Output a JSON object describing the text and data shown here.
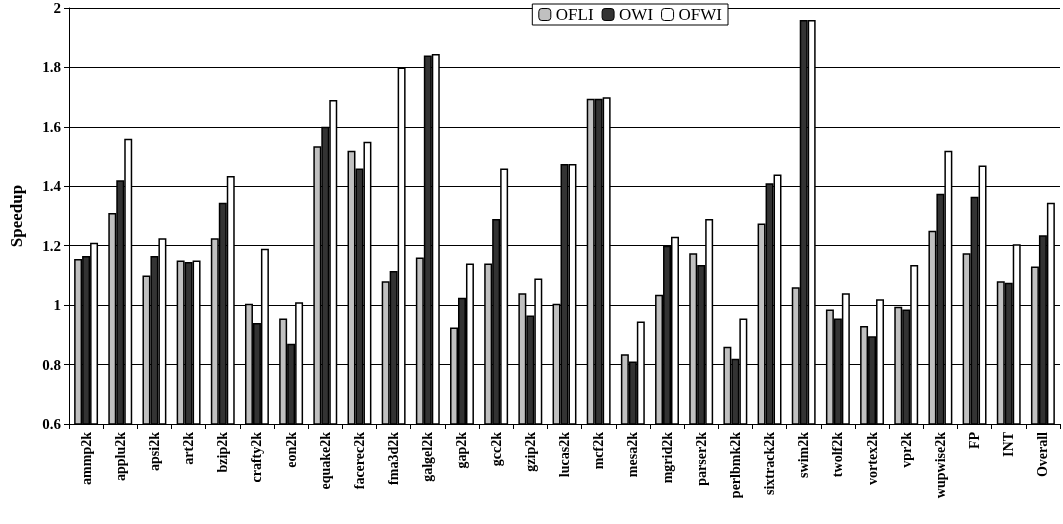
{
  "chart_data": {
    "type": "bar",
    "ylabel": "Speedup",
    "categories": [
      "ammp2k",
      "applu2k",
      "apsi2k",
      "art2k",
      "bzip2k",
      "crafty2k",
      "eon2k",
      "equake2k",
      "facerec2k",
      "fma3d2k",
      "galgel2k",
      "gap2k",
      "gcc2k",
      "gzip2k",
      "lucas2k",
      "mcf2k",
      "mesa2k",
      "mgrid2k",
      "parser2k",
      "perlbmk2k",
      "sixtrack2k",
      "swim2k",
      "twolf2k",
      "vortex2k",
      "vpr2k",
      "wupwise2k",
      "FP",
      "INT",
      "Overall"
    ],
    "series": [
      {
        "name": "OFLI",
        "color": "#c0c0c0",
        "values": [
          1.155,
          1.31,
          1.1,
          1.15,
          1.225,
          1.005,
          0.955,
          1.535,
          1.52,
          1.08,
          1.16,
          0.925,
          1.14,
          1.04,
          1.005,
          1.695,
          0.835,
          1.035,
          1.175,
          0.86,
          1.275,
          1.06,
          0.985,
          0.93,
          0.995,
          1.25,
          1.175,
          1.08,
          1.13
        ]
      },
      {
        "name": "OWI",
        "color": "#333333",
        "values": [
          1.165,
          1.42,
          1.165,
          1.145,
          1.345,
          0.94,
          0.87,
          1.6,
          1.46,
          1.115,
          1.84,
          1.025,
          1.29,
          0.965,
          1.475,
          1.695,
          0.81,
          1.2,
          1.135,
          0.82,
          1.41,
          1.96,
          0.955,
          0.895,
          0.985,
          1.375,
          1.365,
          1.075,
          1.235
        ]
      },
      {
        "name": "OFWI",
        "color": "#ffffff",
        "values": [
          1.21,
          1.56,
          1.225,
          1.15,
          1.435,
          1.19,
          1.01,
          1.69,
          1.55,
          1.8,
          1.845,
          1.14,
          1.46,
          1.09,
          1.475,
          1.7,
          0.945,
          1.23,
          1.29,
          0.955,
          1.44,
          1.96,
          1.04,
          1.02,
          1.135,
          1.52,
          1.47,
          1.205,
          1.345
        ]
      }
    ],
    "ylim": [
      0.6,
      2
    ],
    "yticks": [
      0.6,
      0.8,
      1,
      1.2,
      1.4,
      1.6,
      1.8,
      2
    ],
    "grid": "y",
    "legend": "top right"
  }
}
